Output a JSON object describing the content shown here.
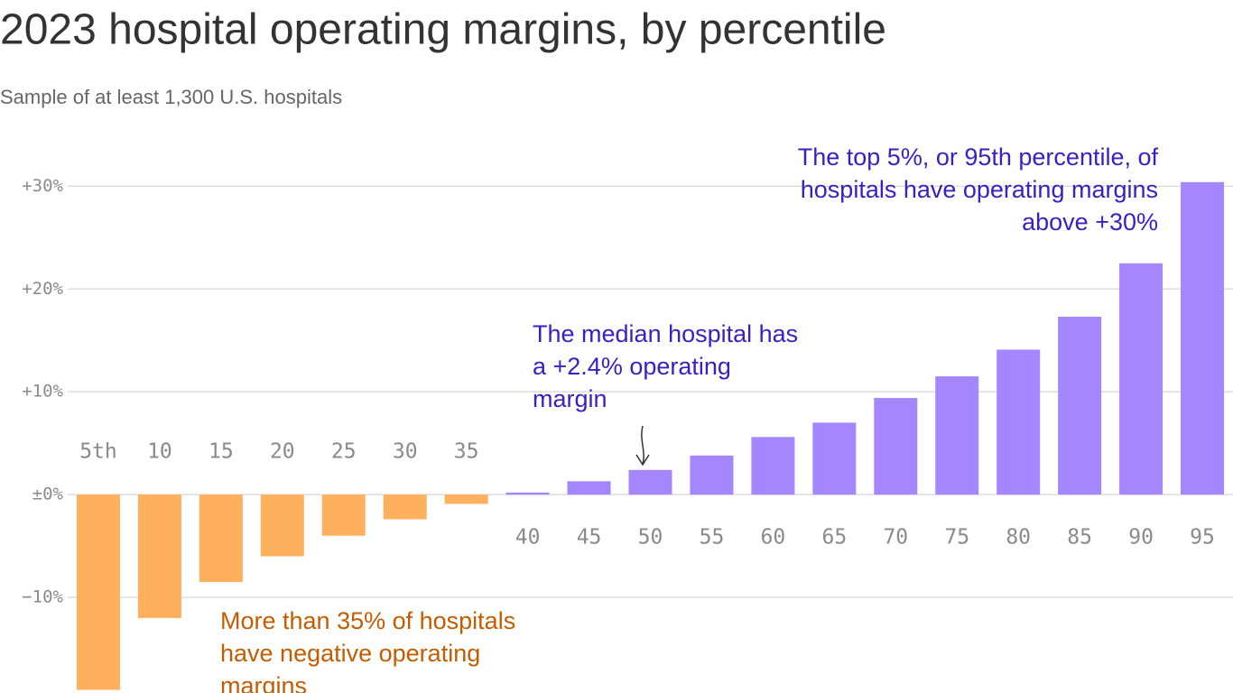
{
  "chart_data": {
    "type": "bar",
    "title": "2023 hospital operating margins, by percentile",
    "subtitle": "Sample of at least 1,300 U.S. hospitals",
    "categories": [
      "5th",
      "10",
      "15",
      "20",
      "25",
      "30",
      "35",
      "40",
      "45",
      "50",
      "55",
      "60",
      "65",
      "70",
      "75",
      "80",
      "85",
      "90",
      "95"
    ],
    "values": [
      -19.0,
      -12.0,
      -8.5,
      -6.0,
      -4.0,
      -2.4,
      -0.9,
      0.2,
      1.3,
      2.4,
      3.8,
      5.6,
      7.0,
      9.4,
      11.5,
      14.1,
      17.3,
      22.5,
      30.4
    ],
    "negative_color": "#ffb05c",
    "positive_color": "#a586ff",
    "ylim": [
      -19.3,
      36
    ],
    "yticks": [
      {
        "value": -10,
        "label": "−10%"
      },
      {
        "value": 0,
        "label": "±0%"
      },
      {
        "value": 10,
        "label": "+10%"
      },
      {
        "value": 20,
        "label": "+20%"
      },
      {
        "value": 30,
        "label": "+30%"
      }
    ],
    "grid": true,
    "annotations": [
      {
        "lines": [
          "The top 5%, or 95th percentile, of",
          "hospitals have operating margins",
          "above +30%"
        ],
        "color": "#3b1fc4"
      },
      {
        "lines": [
          "The median hospital has",
          "a +2.4% operating",
          "margin"
        ],
        "color": "#3b1fc4"
      },
      {
        "lines": [
          "More than 35% of hospitals",
          "have negative operating",
          "margins"
        ],
        "color": "#c45c00"
      }
    ]
  }
}
